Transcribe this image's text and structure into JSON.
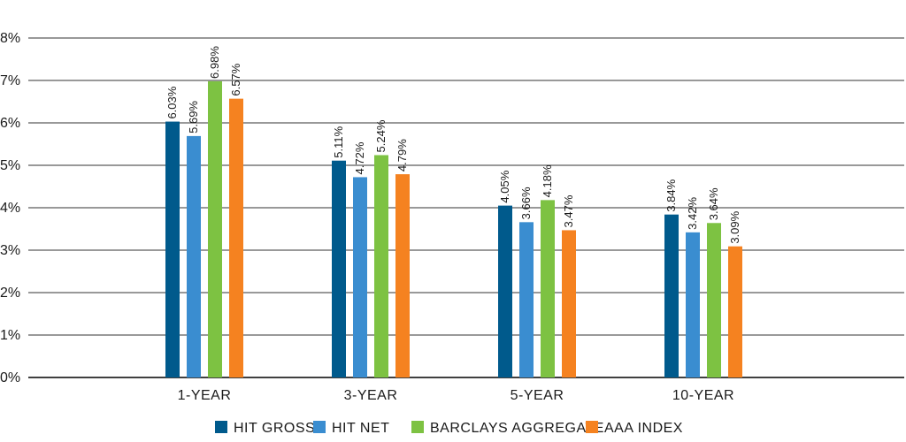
{
  "chart_data": {
    "type": "bar",
    "categories": [
      "1-YEAR",
      "3-YEAR",
      "5-YEAR",
      "10-YEAR"
    ],
    "series": [
      {
        "name": "HIT GROSS",
        "color": "#005a8c",
        "values": [
          6.03,
          5.11,
          4.05,
          3.84
        ],
        "labels": [
          "6.03%",
          "5.11%",
          "4.05%",
          "3.84%"
        ]
      },
      {
        "name": "HIT NET",
        "color": "#3a8dd0",
        "values": [
          5.69,
          4.72,
          3.66,
          3.42
        ],
        "labels": [
          "5.69%",
          "4.72%",
          "3.66%",
          "3.42%"
        ]
      },
      {
        "name": "BARCLAYS AGGREGATE",
        "color": "#7dc242",
        "values": [
          6.98,
          5.24,
          4.18,
          3.64
        ],
        "labels": [
          "6.98%",
          "5.24%",
          "4.18%",
          "3.64%"
        ]
      },
      {
        "name": "AAA INDEX",
        "color": "#f58220",
        "values": [
          6.57,
          4.79,
          3.47,
          3.09
        ],
        "labels": [
          "6.57%",
          "4.79%",
          "3.47%",
          "3.09%"
        ]
      }
    ],
    "ylim": [
      0,
      8
    ],
    "yticks": [
      0,
      1,
      2,
      3,
      4,
      5,
      6,
      7,
      8
    ],
    "ytick_labels": [
      "0%",
      "1%",
      "2%",
      "3%",
      "4%",
      "5%",
      "6%",
      "7%",
      "8%"
    ],
    "grid": true,
    "legend_position": "bottom"
  }
}
